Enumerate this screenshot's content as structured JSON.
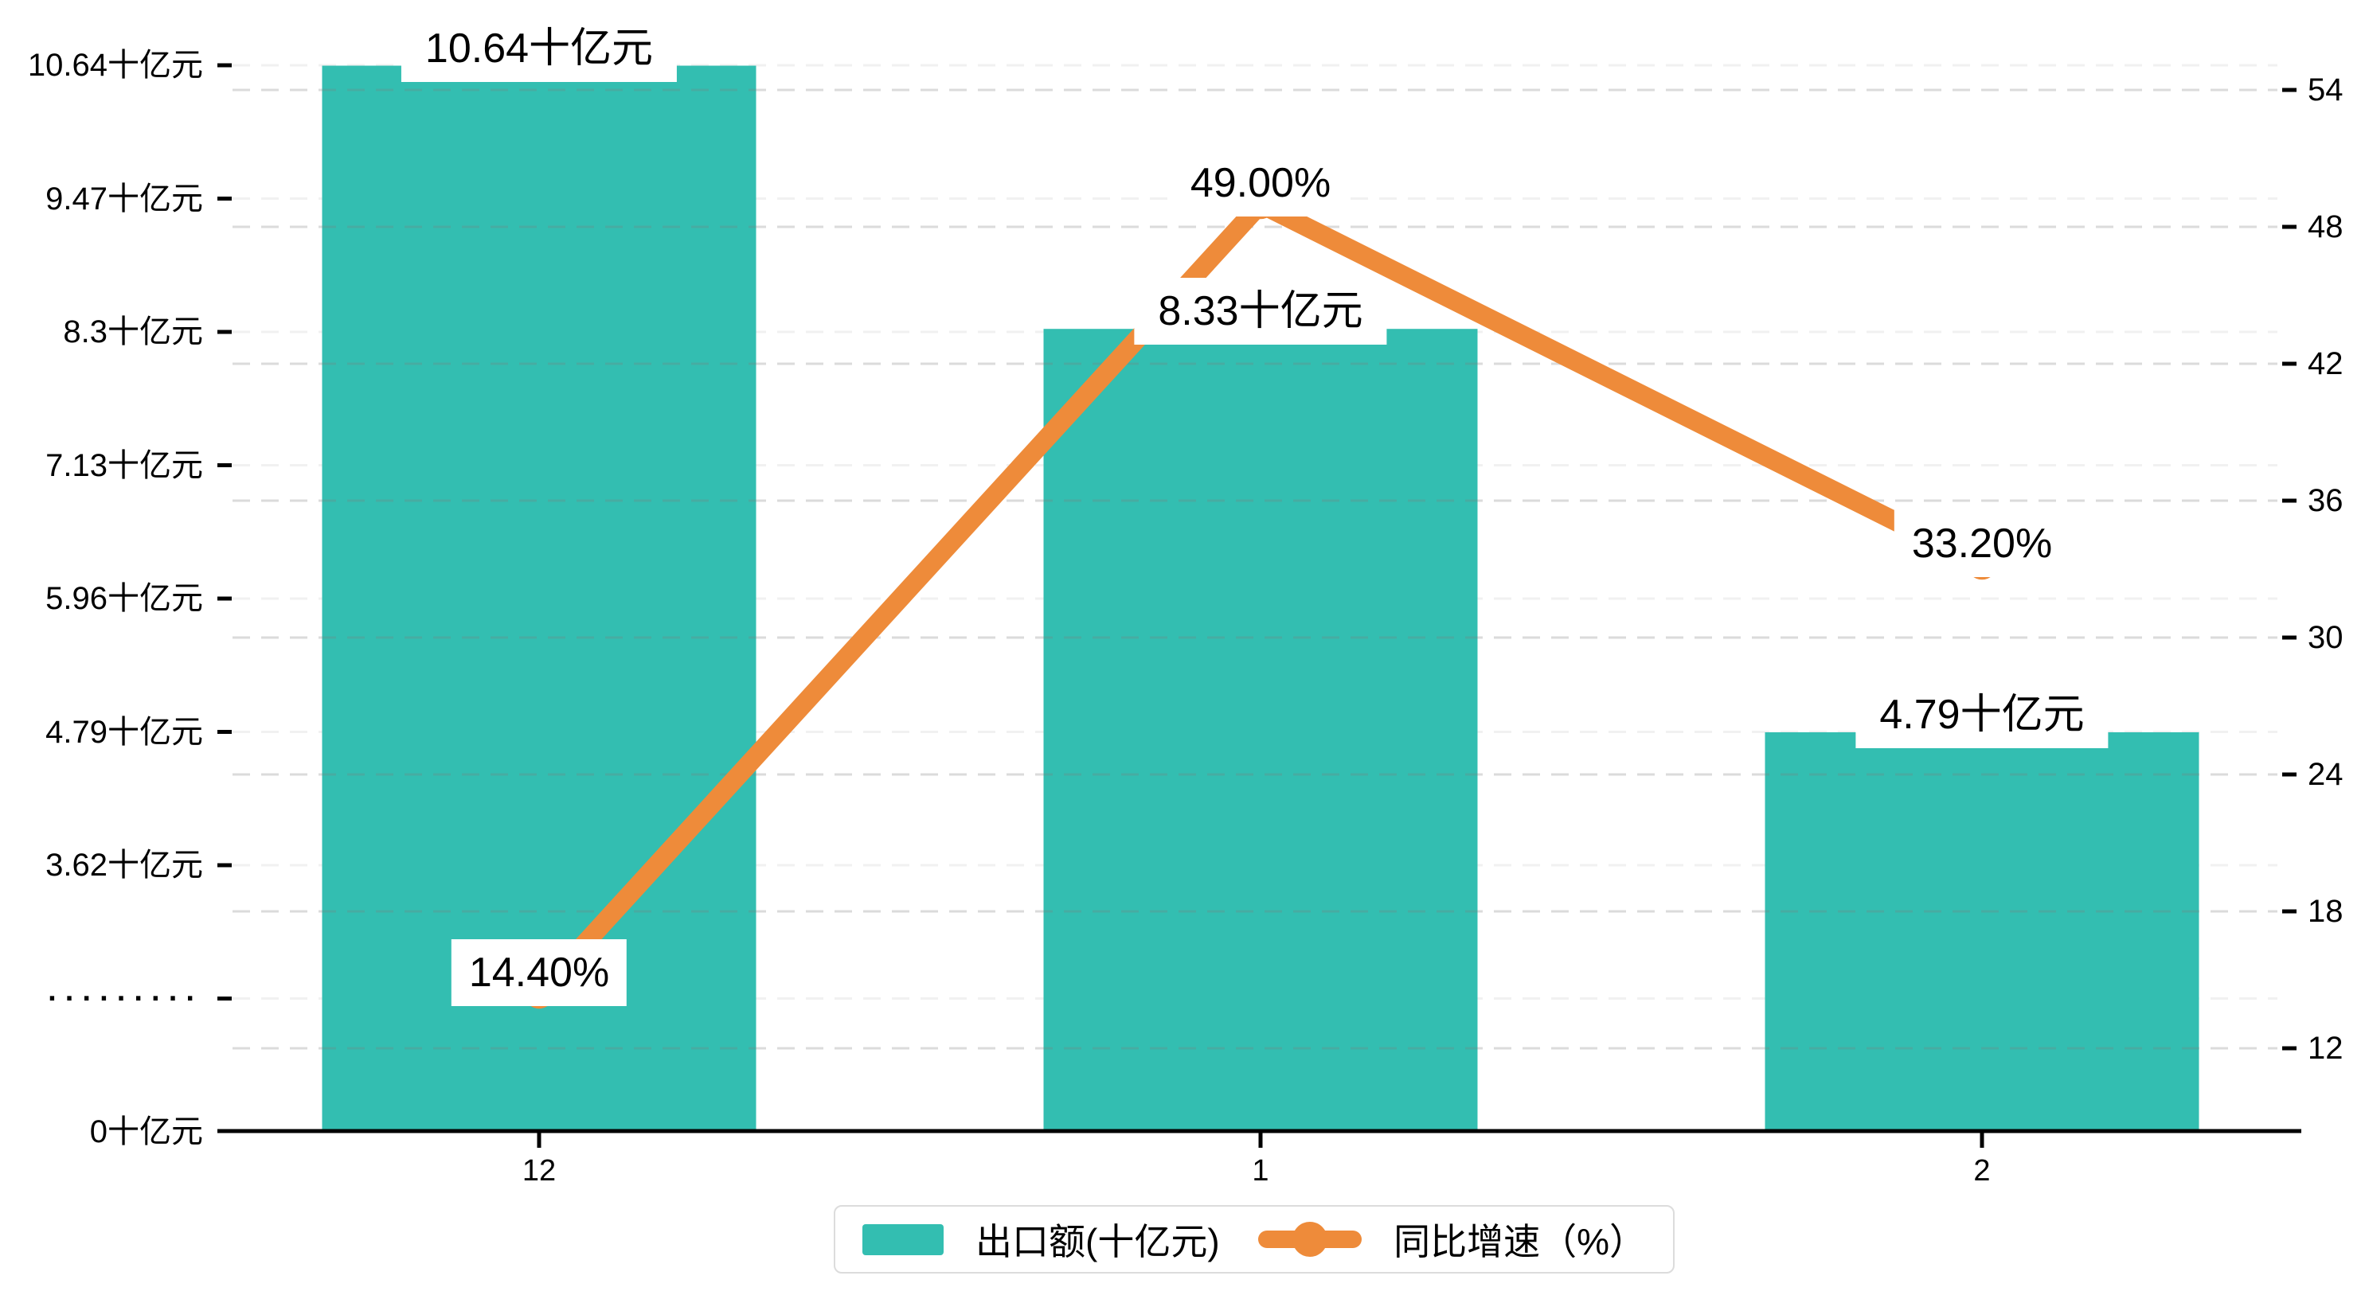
{
  "chart_data": {
    "type": "bar",
    "subtype": "bar-line-combo",
    "categories": [
      "12",
      "1",
      "2"
    ],
    "series": [
      {
        "name": "出口额(十亿元)",
        "type": "bar",
        "axis": "left",
        "unit": "十亿元",
        "color": "#33BEB1",
        "values": [
          10.64,
          8.33,
          4.79
        ],
        "labels": [
          "10.64十亿元",
          "8.33十亿元",
          "4.79十亿元"
        ]
      },
      {
        "name": "同比增速（%）",
        "type": "line",
        "axis": "right",
        "unit": "%",
        "color": "#EE8B3A",
        "values": [
          14.4,
          49.0,
          33.2
        ],
        "labels": [
          "14.40%",
          "49.00%",
          "33.20%"
        ]
      }
    ],
    "left_axis": {
      "tick_labels_top_to_bottom": [
        "10.64十亿元",
        "9.47十亿元",
        "8.3十亿元",
        "7.13十亿元",
        "5.96十亿元",
        "4.79十亿元",
        "3.62十亿元",
        "·········",
        "0十亿元"
      ],
      "tick_values_top_to_bottom": [
        10.64,
        9.47,
        8.3,
        7.13,
        5.96,
        4.79,
        3.62,
        null,
        0
      ],
      "break_label": "·········",
      "has_axis_break": true
    },
    "right_axis": {
      "tick_labels_top_to_bottom": [
        "54",
        "48",
        "42",
        "36",
        "30",
        "24",
        "18",
        "12"
      ],
      "tick_values_top_to_bottom": [
        54,
        48,
        42,
        36,
        30,
        24,
        18,
        12
      ],
      "range": [
        12,
        54
      ]
    },
    "legend": [
      {
        "label": "出口额(十亿元)",
        "marker": "rect",
        "color": "#33BEB1"
      },
      {
        "label": "同比增速（%）",
        "marker": "line-dot",
        "color": "#EE8B3A"
      }
    ],
    "grid": {
      "dashed": true,
      "left_grid_color": "#f1f1f1",
      "right_grid_color": "rgba(125,125,125,0.28)"
    },
    "colors": {
      "bar": "#33BEB1",
      "line": "#EE8B3A",
      "axis": "#000000",
      "legend_border": "#dcdcdc",
      "label_plate": "#ffffff"
    }
  }
}
